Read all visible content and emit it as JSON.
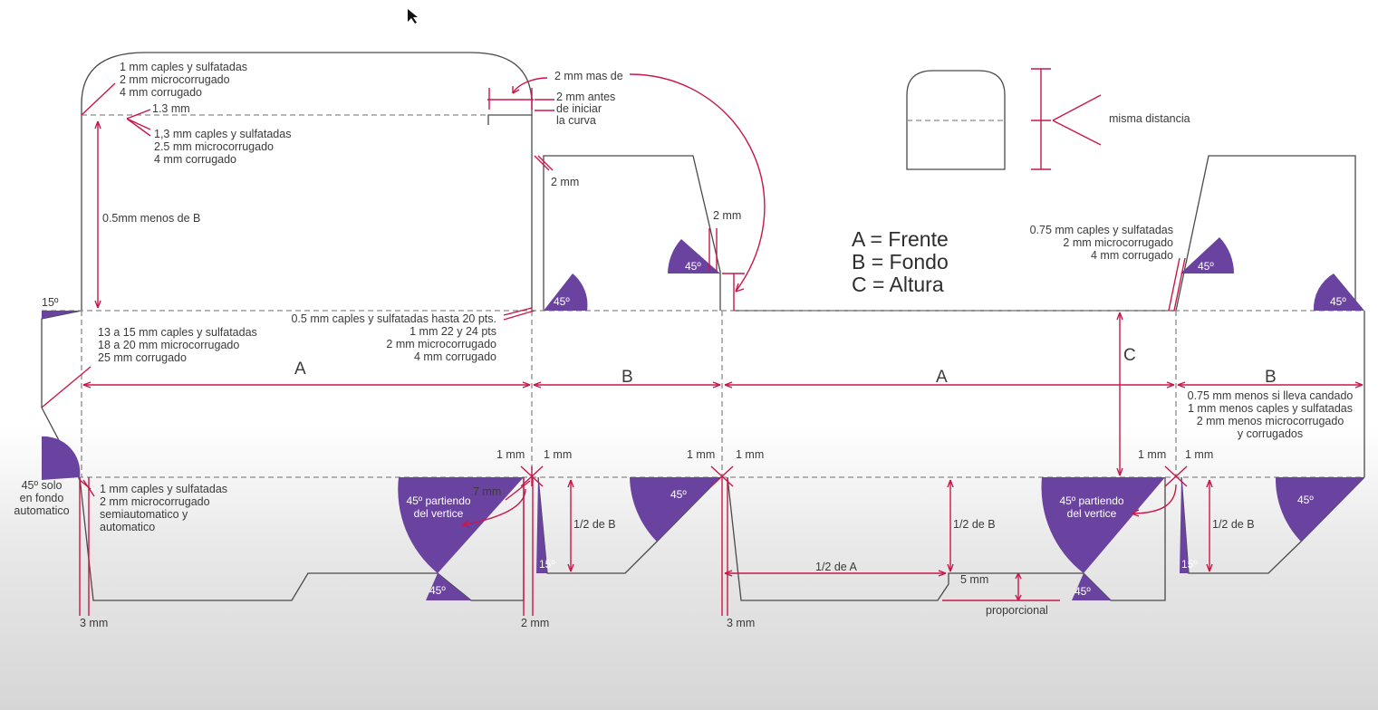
{
  "colors": {
    "accent": "#c8174a",
    "wedge": "#6a43a0",
    "line": "#4a4a4a"
  },
  "legend": [
    "A = Frente",
    "B = Fondo",
    "C = Altura"
  ],
  "dims": {
    "A": "A",
    "B": "B",
    "C": "C",
    "half_b": "1/2 de B",
    "half_a": "1/2 de A",
    "five_mm": "5 mm",
    "proporcional": "proporcional",
    "one_mm": "1 mm",
    "two_mm": "2 mm",
    "three_mm": "3 mm",
    "seven_mm": "7 mm",
    "one_three_mm": "1.3 mm"
  },
  "angles": {
    "a45": "45º",
    "a15": "15º"
  },
  "notes": {
    "top_flap": [
      "1 mm caples y sulfatadas",
      "2 mm microcorrugado",
      "4 mm corrugado"
    ],
    "dust_offset": [
      "1,3 mm caples y sulfatadas",
      "2.5 mm microcorrugado",
      "4 mm corrugado"
    ],
    "half_less_b": "0.5mm menos de B",
    "mas_de": "2 mm mas de",
    "antes_curva": [
      "2 mm antes",
      "de iniciar",
      "la curva"
    ],
    "misma_distancia": "misma distancia",
    "glue_offset": [
      "0.5 mm caples y sulfatadas hasta  20 pts.",
      "1 mm 22 y 24 pts",
      "2 mm microcorrugado",
      "4 mm corrugado"
    ],
    "glue_tab": [
      "13 a 15 mm caples y sulfatadas",
      "18 a 20 mm microcorrugado",
      "25 mm corrugado"
    ],
    "right_dust": [
      "0.75 mm caples y sulfatadas",
      "2 mm microcorrugado",
      "4 mm corrugado"
    ],
    "last_b": [
      "0.75 mm menos si lleva candado",
      "1 mm menos caples y sulfatadas",
      "2 mm menos  microcorrugado",
      "y corrugados"
    ],
    "solo_fondo": [
      "45º solo",
      "en fondo",
      "automatico"
    ],
    "bottom_left": [
      "1 mm caples y sulfatadas",
      "2 mm microcorrugado",
      "semiautomatico y",
      "automatico"
    ],
    "partiendo": [
      "45º partiendo",
      "del vertice"
    ]
  }
}
